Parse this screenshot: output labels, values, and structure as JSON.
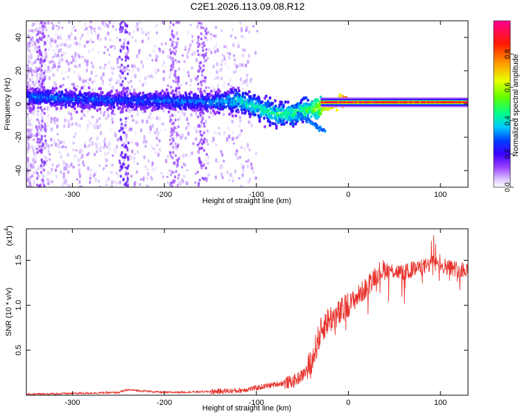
{
  "title": "C2E1.2026.113.09.08.R12",
  "chart_data": [
    {
      "type": "heatmap",
      "name": "spectrogram",
      "xlabel": "Height of straight line (km)",
      "ylabel": "Frequency (Hz)",
      "xlim": [
        -350,
        130
      ],
      "ylim": [
        -50,
        50
      ],
      "x_ticks": [
        -300,
        -200,
        -100,
        0,
        100
      ],
      "y_ticks": [
        -40,
        -20,
        0,
        20,
        40
      ],
      "colorbar": {
        "label": "Normalized spectral amplitude",
        "range": [
          0,
          1
        ],
        "ticks": [
          0.0,
          0.2,
          0.4,
          0.6,
          0.8
        ],
        "colors": [
          "#ffffff",
          "#c9a8ff",
          "#8a00ff",
          "#3c00ff",
          "#0030ff",
          "#00c8ff",
          "#00ff80",
          "#80ff00",
          "#ffff00",
          "#ff8000",
          "#ff0000",
          "#ff0080"
        ]
      },
      "signal_track": [
        {
          "x": -330,
          "y": 4,
          "amp": 0.3
        },
        {
          "x": -300,
          "y": 3,
          "amp": 0.3
        },
        {
          "x": -250,
          "y": 2,
          "amp": 0.28
        },
        {
          "x": -200,
          "y": 2,
          "amp": 0.3
        },
        {
          "x": -150,
          "y": 1,
          "amp": 0.32
        },
        {
          "x": -120,
          "y": 2,
          "amp": 0.4
        },
        {
          "x": -100,
          "y": -2,
          "amp": 0.42
        },
        {
          "x": -80,
          "y": -6,
          "amp": 0.45
        },
        {
          "x": -60,
          "y": -6,
          "amp": 0.45
        },
        {
          "x": -40,
          "y": -3,
          "amp": 0.5
        },
        {
          "x": -20,
          "y": 0,
          "amp": 0.75
        },
        {
          "x": 0,
          "y": 2,
          "amp": 0.85
        },
        {
          "x": 20,
          "y": 1,
          "amp": 0.9
        },
        {
          "x": 50,
          "y": 1,
          "amp": 0.9
        },
        {
          "x": 90,
          "y": 1,
          "amp": 0.9
        },
        {
          "x": 130,
          "y": 1,
          "amp": 0.9
        }
      ]
    },
    {
      "type": "line",
      "name": "snr",
      "xlabel": "Height of straight line (km)",
      "ylabel": "SNR (10 * v/v)",
      "multiplier": "(x10",
      "multiplier_exp": "4",
      "xlim": [
        -350,
        130
      ],
      "ylim": [
        0,
        1.85
      ],
      "x_ticks": [
        -300,
        -200,
        -100,
        0,
        100
      ],
      "y_ticks": [
        0.5,
        1.0,
        1.5
      ],
      "y_tick_labels": [
        "0.5",
        "1.0",
        "1.5"
      ],
      "color": "#e8322c",
      "series": [
        {
          "name": "SNR",
          "x": [
            -350,
            -300,
            -250,
            -240,
            -200,
            -150,
            -120,
            -100,
            -80,
            -60,
            -50,
            -40,
            -35,
            -30,
            -25,
            -20,
            -10,
            0,
            10,
            20,
            30,
            40,
            50,
            60,
            70,
            80,
            90,
            100,
            110,
            120,
            130
          ],
          "y": [
            0.01,
            0.02,
            0.03,
            0.06,
            0.03,
            0.04,
            0.05,
            0.08,
            0.12,
            0.15,
            0.22,
            0.35,
            0.55,
            0.7,
            0.8,
            0.85,
            0.9,
            1.0,
            1.1,
            1.2,
            1.35,
            1.4,
            1.38,
            1.36,
            1.4,
            1.42,
            1.46,
            1.45,
            1.42,
            1.4,
            1.4
          ]
        }
      ]
    }
  ]
}
